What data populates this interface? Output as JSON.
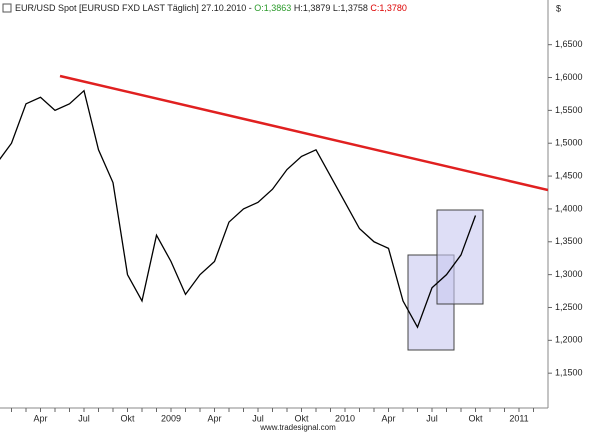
{
  "chart_data": {
    "type": "line",
    "title": "EUR/USD Spot [EURUSD FXD LAST Täglich] 27.10.2010 -",
    "open": "O:1,3863",
    "high_low": "H:1,3879 L:1,3758",
    "close": "C:1,3780",
    "currency": "$",
    "footer": "www.tradesignal.com",
    "categories": [
      null,
      null,
      null,
      "Apr",
      null,
      null,
      "Jul",
      null,
      null,
      "Okt",
      null,
      null,
      "2009",
      null,
      null,
      "Apr",
      null,
      null,
      "Jul",
      null,
      null,
      "Okt",
      null,
      null,
      "2010",
      null,
      null,
      "Apr",
      null,
      null,
      "Jul",
      null,
      null,
      "Okt",
      null,
      null,
      "2011",
      null
    ],
    "series": [
      {
        "color": "#000000",
        "values": [
          1.47,
          1.5,
          1.56,
          1.57,
          1.55,
          1.56,
          1.58,
          1.49,
          1.44,
          1.3,
          1.26,
          1.36,
          1.32,
          1.27,
          1.3,
          1.32,
          1.38,
          1.4,
          1.41,
          1.43,
          1.46,
          1.48,
          1.49,
          1.45,
          1.41,
          1.37,
          1.35,
          1.34,
          1.26,
          1.22,
          1.28,
          1.3,
          1.33,
          1.39,
          null,
          null,
          null,
          null
        ]
      }
    ],
    "ylim": [
      1.097,
      1.718
    ],
    "yticks": [
      {
        "value": 1.15,
        "label": "1,1500"
      },
      {
        "value": 1.2,
        "label": "1,2000"
      },
      {
        "value": 1.25,
        "label": "1,2500"
      },
      {
        "value": 1.3,
        "label": "1,3000"
      },
      {
        "value": 1.35,
        "label": "1,3500"
      },
      {
        "value": 1.4,
        "label": "1,4000"
      },
      {
        "value": 1.45,
        "label": "1,4500"
      },
      {
        "value": 1.5,
        "label": "1,5000"
      },
      {
        "value": 1.55,
        "label": "1,5500"
      },
      {
        "value": 1.6,
        "label": "1,6000"
      },
      {
        "value": 1.65,
        "label": "1,6500"
      }
    ]
  }
}
